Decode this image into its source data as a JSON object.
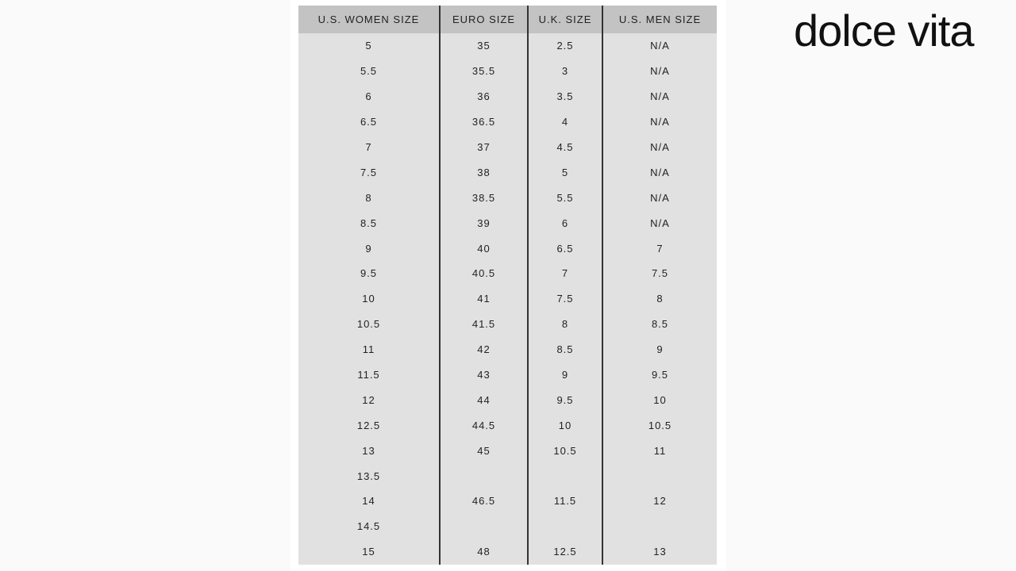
{
  "brand": "dolce vita",
  "table": {
    "headers": [
      "U.S. WOMEN SIZE",
      "EURO SIZE",
      "U.K. SIZE",
      "U.S. MEN SIZE"
    ],
    "rows": [
      [
        "5",
        "35",
        "2.5",
        "N/A"
      ],
      [
        "5.5",
        "35.5",
        "3",
        "N/A"
      ],
      [
        "6",
        "36",
        "3.5",
        "N/A"
      ],
      [
        "6.5",
        "36.5",
        "4",
        "N/A"
      ],
      [
        "7",
        "37",
        "4.5",
        "N/A"
      ],
      [
        "7.5",
        "38",
        "5",
        "N/A"
      ],
      [
        "8",
        "38.5",
        "5.5",
        "N/A"
      ],
      [
        "8.5",
        "39",
        "6",
        "N/A"
      ],
      [
        "9",
        "40",
        "6.5",
        "7"
      ],
      [
        "9.5",
        "40.5",
        "7",
        "7.5"
      ],
      [
        "10",
        "41",
        "7.5",
        "8"
      ],
      [
        "10.5",
        "41.5",
        "8",
        "8.5"
      ],
      [
        "11",
        "42",
        "8.5",
        "9"
      ],
      [
        "11.5",
        "43",
        "9",
        "9.5"
      ],
      [
        "12",
        "44",
        "9.5",
        "10"
      ],
      [
        "12.5",
        "44.5",
        "10",
        "10.5"
      ],
      [
        "13",
        "45",
        "10.5",
        "11"
      ],
      [
        "13.5",
        "",
        "",
        ""
      ],
      [
        "14",
        "46.5",
        "11.5",
        "12"
      ],
      [
        "14.5",
        "",
        "",
        ""
      ],
      [
        "15",
        "48",
        "12.5",
        "13"
      ]
    ]
  }
}
